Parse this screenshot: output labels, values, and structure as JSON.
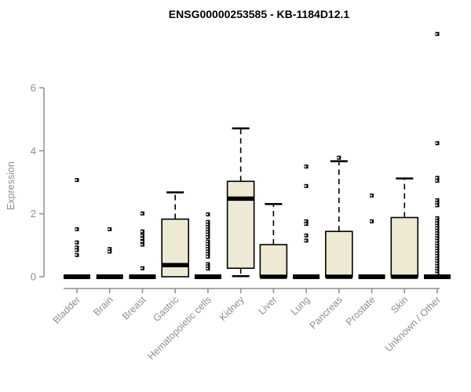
{
  "title": "ENSG00000253585 - KB-1184D12.1",
  "chart_data": {
    "type": "boxplot",
    "title": "ENSG00000253585 - KB-1184D12.1",
    "xlabel": "",
    "ylabel": "Expression",
    "ylim": [
      0,
      6
    ],
    "yticks": [
      0,
      2,
      4,
      6
    ],
    "grid": false,
    "legend": "none",
    "box_fill_color": "#ede9d2",
    "box_border_color": "#000000",
    "median_color": "#000000",
    "axis_color": "#8e8e8e",
    "title_color": "#000000",
    "outlier_marker": "hollow-square",
    "categories": [
      "Bladder",
      "Brain",
      "Breast",
      "Gastric",
      "Hematopoietic cells",
      "Kidney",
      "Liver",
      "Lung",
      "Pancreas",
      "Prostate",
      "Skin",
      "Unknown / Other"
    ],
    "series": [
      {
        "category": "Bladder",
        "whisker_low": 0,
        "q1": 0,
        "median": 0,
        "q3": 0,
        "whisker_high": 0,
        "outliers": [
          3.07,
          1.51,
          1.09,
          0.93,
          0.85,
          0.69
        ]
      },
      {
        "category": "Brain",
        "whisker_low": 0,
        "q1": 0,
        "median": 0,
        "q3": 0,
        "whisker_high": 0,
        "outliers": [
          1.51,
          0.88,
          0.8
        ]
      },
      {
        "category": "Breast",
        "whisker_low": 0,
        "q1": 0,
        "median": 0,
        "q3": 0,
        "whisker_high": 0,
        "outliers": [
          2.01,
          1.44,
          1.31,
          1.22,
          1.12,
          1.02,
          0.27
        ]
      },
      {
        "category": "Gastric",
        "whisker_low": 0,
        "q1": 0,
        "median": 0.37,
        "q3": 1.83,
        "whisker_high": 2.68,
        "outliers": []
      },
      {
        "category": "Hematopoietic cells",
        "whisker_low": 0,
        "q1": 0,
        "median": 0,
        "q3": 0,
        "whisker_high": 0,
        "outliers": [
          1.98,
          1.74,
          1.66,
          1.58,
          1.5,
          1.42,
          1.34,
          1.26,
          1.12,
          1.04,
          0.96,
          0.88,
          0.8,
          0.72,
          0.64,
          0.4,
          0.33,
          0.26
        ]
      },
      {
        "category": "Kidney",
        "whisker_low": 0.02,
        "q1": 0.27,
        "median": 2.48,
        "q3": 3.03,
        "whisker_high": 4.71,
        "outliers": []
      },
      {
        "category": "Liver",
        "whisker_low": 0,
        "q1": 0,
        "median": 0,
        "q3": 1.02,
        "whisker_high": 2.31,
        "outliers": []
      },
      {
        "category": "Lung",
        "whisker_low": 0,
        "q1": 0,
        "median": 0,
        "q3": 0,
        "whisker_high": 0,
        "outliers": [
          3.5,
          2.88,
          1.76,
          1.68,
          1.31,
          1.15
        ]
      },
      {
        "category": "Pancreas",
        "whisker_low": 0,
        "q1": 0,
        "median": 0,
        "q3": 1.44,
        "whisker_high": 3.67,
        "outliers": [
          3.78
        ]
      },
      {
        "category": "Prostate",
        "whisker_low": 0,
        "q1": 0,
        "median": 0,
        "q3": 0,
        "whisker_high": 0,
        "outliers": [
          2.58,
          1.76
        ]
      },
      {
        "category": "Skin",
        "whisker_low": 0,
        "q1": 0,
        "median": 0,
        "q3": 1.88,
        "whisker_high": 3.12,
        "outliers": []
      },
      {
        "category": "Unknown / Other",
        "whisker_low": 0,
        "q1": 0,
        "median": 0,
        "q3": 0,
        "whisker_high": 0,
        "outliers": [
          7.71,
          4.24,
          3.14,
          3.05,
          2.43,
          2.35,
          2.27,
          1.86,
          1.78,
          1.7,
          1.62,
          1.54,
          1.46,
          1.38,
          1.3,
          1.22,
          1.14,
          1.06,
          0.98,
          0.9,
          0.82,
          0.74,
          0.66,
          0.58,
          0.5,
          0.42,
          0.34,
          0.26,
          0.18,
          0.1
        ]
      }
    ]
  }
}
